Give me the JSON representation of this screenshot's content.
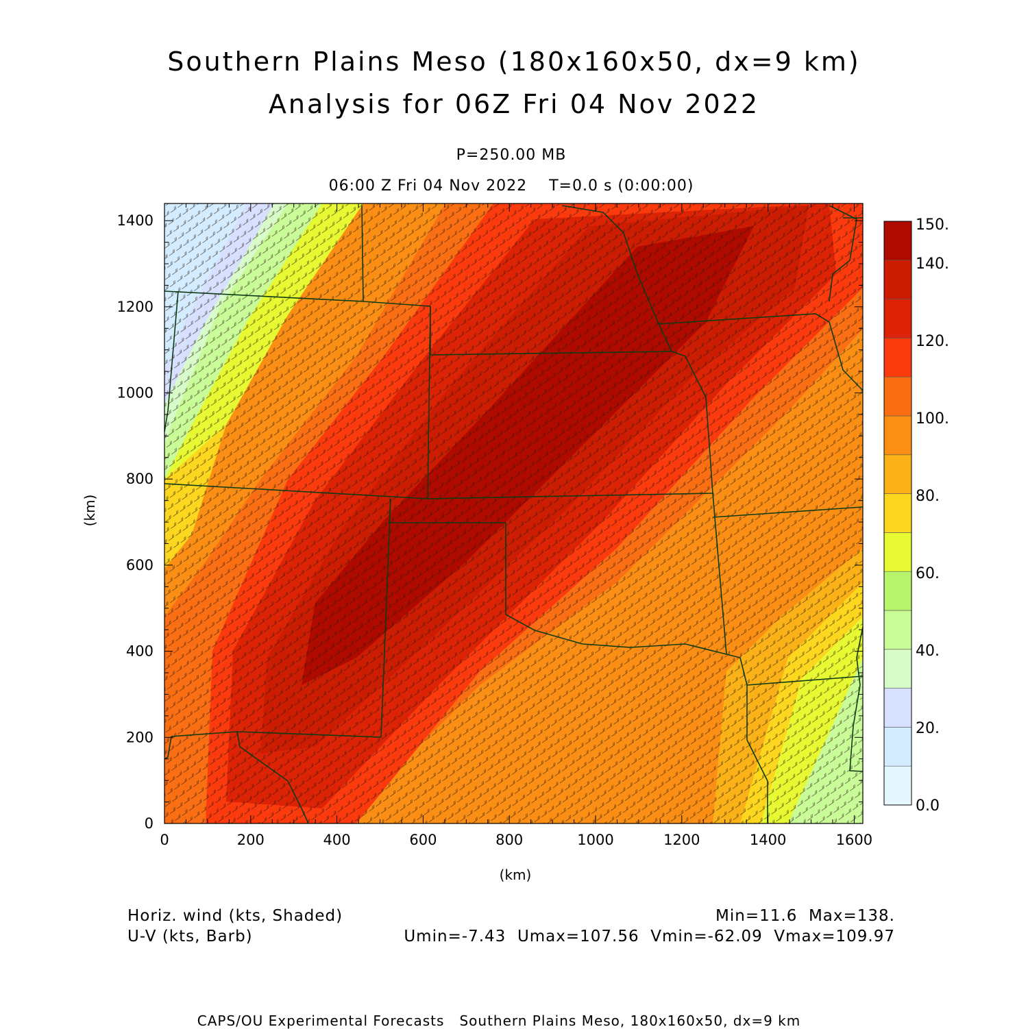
{
  "header": {
    "title_line1": "Southern Plains Meso (180x160x50, dx=9 km)",
    "title_line2": "Analysis for 06Z Fri 04 Nov 2022",
    "level": "P=250.00 MB",
    "time": "06:00 Z Fri 04 Nov 2022    T=0.0 s (0:00:00)"
  },
  "axes": {
    "x_label": "(km)",
    "y_label": "(km)",
    "x_ticks": [
      "0",
      "200",
      "400",
      "600",
      "800",
      "1000",
      "1200",
      "1400",
      "1600"
    ],
    "y_ticks": [
      "0",
      "200",
      "400",
      "600",
      "800",
      "1000",
      "1200",
      "1400"
    ],
    "x_range_km": [
      0,
      1620
    ],
    "y_range_km": [
      0,
      1440
    ]
  },
  "colorbar": {
    "labels": [
      "0.0",
      "20.",
      "40.",
      "60.",
      "80.",
      "100.",
      "120.",
      "140.",
      "150."
    ],
    "colors": [
      "#e6f7ff",
      "#d4ecff",
      "#d7e0ff",
      "#d7fbc9",
      "#c9fb98",
      "#b7f56c",
      "#e6f932",
      "#fdd71f",
      "#fbb218",
      "#fb8f15",
      "#fb6f14",
      "#fb3a0e",
      "#dc2306",
      "#cc1d03",
      "#ae0a00"
    ]
  },
  "map_legend": {
    "field1": "Horiz. wind (kts, Shaded)",
    "field2": "U-V (kts, Barb)",
    "minmax": "Min=11.6  Max=138.",
    "uvstats": "Umin=-7.43  Umax=107.56  Vmin=-62.09  Vmax=109.97"
  },
  "footer": {
    "credit": "CAPS/OU Experimental Forecasts   Southern Plains Meso, 180x160x50, dx=9 km"
  }
}
